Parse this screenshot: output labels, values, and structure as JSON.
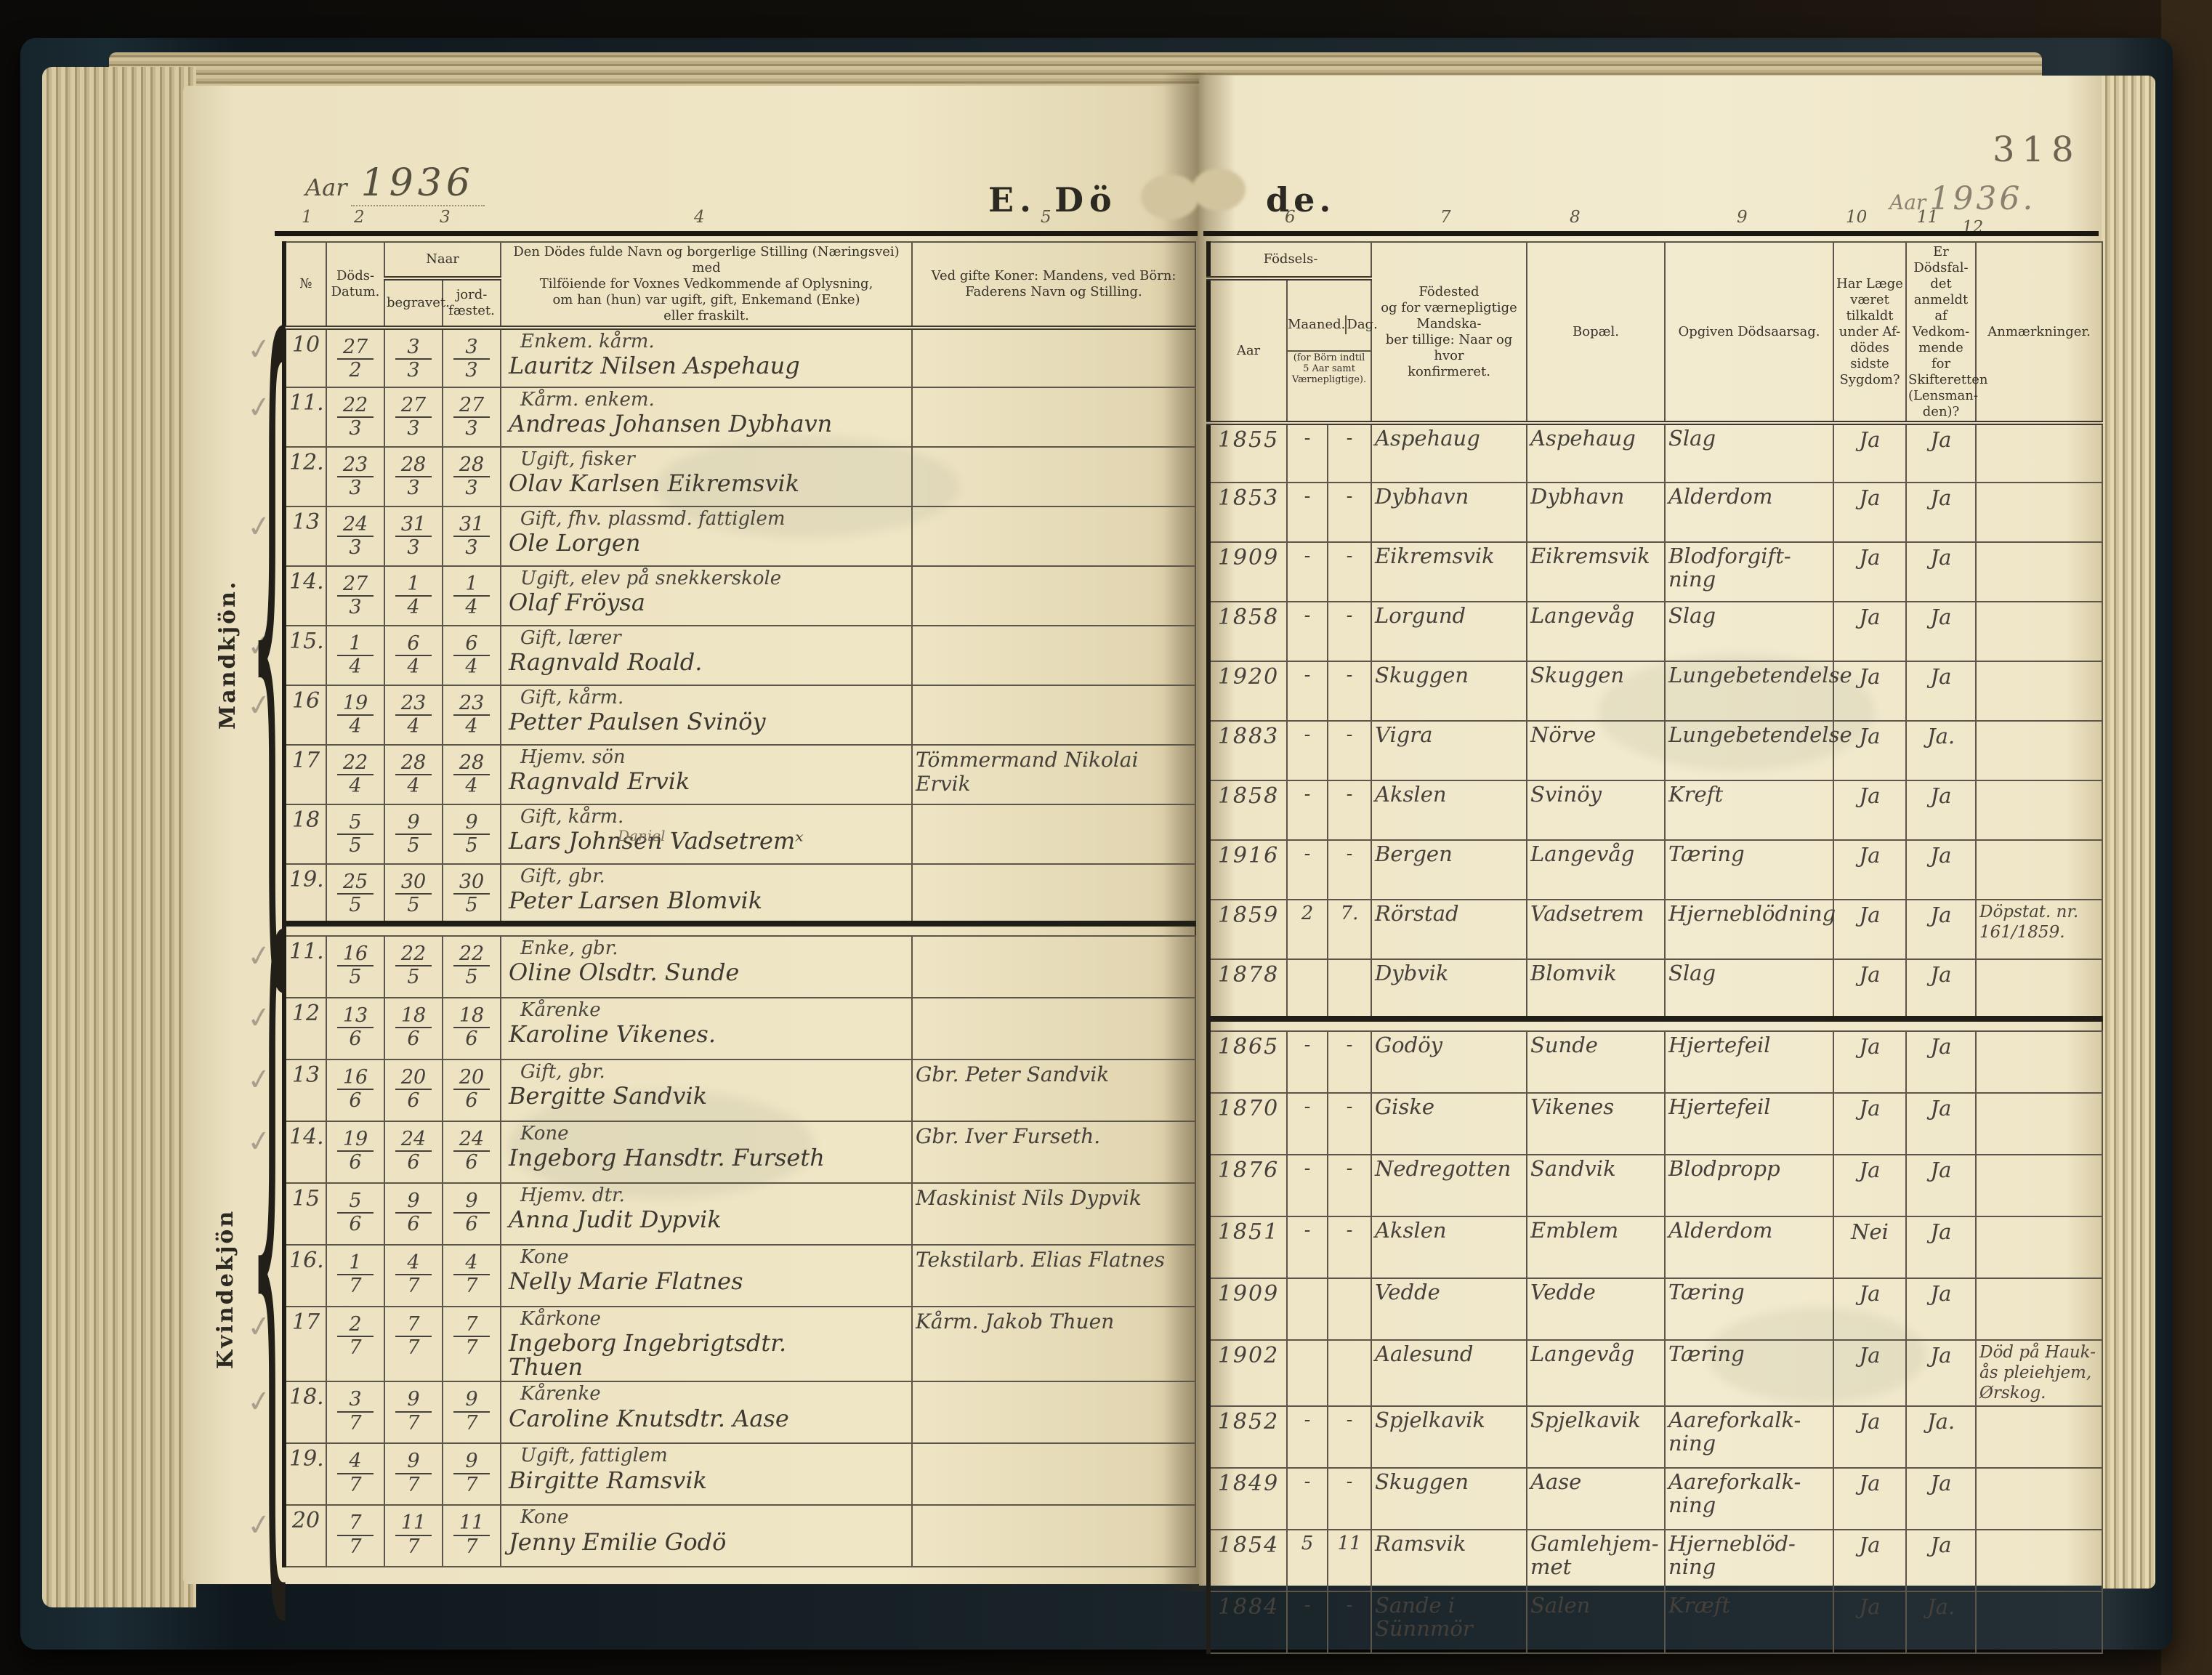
{
  "page": {
    "number": "318",
    "year_label": "Aar",
    "year_left": "1936",
    "year_right": "1936.",
    "title_part1": "E. Dö",
    "title_part2": "de.",
    "check_glyph": "✓",
    "brace_glyph": "{"
  },
  "header": {
    "col_numbers": [
      "1",
      "2",
      "3",
      "4",
      "5",
      "6",
      "7",
      "8",
      "9",
      "10",
      "11",
      "12"
    ],
    "no": "№",
    "dods": "Döds-\nDatum.",
    "naar": "Naar",
    "begravet": "begravet.",
    "jordfaestet": "jord-\nfæstet.",
    "navn": "Den Dödes fulde Navn og borgerlige Stilling (Næringsvei) med\nTilföiende for Voxnes Vedkommende af Oplysning,\nom han (hun) var ugift, gift, Enkemand (Enke)\neller fraskilt.",
    "koner": "Ved gifte Koner: Mandens, ved Börn:\nFaderens Navn og Stilling.",
    "fodsels": "Födsels-",
    "aar": "Aar",
    "maaned": "Maaned.",
    "dag": "Dag.",
    "fodsels_note": "(for Börn indtil\n5 Aar samt\nVærnepligtige).",
    "fodested": "Födested\nog for værnepligtige Mandska-\nber tillige: Naar og hvor\nkonfirmeret.",
    "bopael": "Bopæl.",
    "aarsag": "Opgiven Dödsaarsag.",
    "laege": "Har Læge\nværet\ntilkaldt\nunder Af-\ndödes sidste\nSygdom?",
    "anmeldt": "Er Dödsfal-\ndet anmeldt\naf Vedkom-\nmende for\nSkifteretten\n(Lensman-\nden)?",
    "anm": "Anmærkninger."
  },
  "sections": [
    {
      "label": "Mandkjön.",
      "rows": [
        {
          "no": "10",
          "dod": [
            "27",
            "2"
          ],
          "beg": [
            "3",
            "3"
          ],
          "jor": [
            "3",
            "3"
          ],
          "st": "Enkem. kårm.",
          "nv": "Lauritz Nilsen Aspehaug",
          "far": "",
          "aar": "1855",
          "m": "-",
          "d": "-",
          "sted": "Aspehaug",
          "bo": "Aspehaug",
          "ars": "Slag",
          "lg": "Ja",
          "an": "Ja",
          "anm": "",
          "chk": true
        },
        {
          "no": "11.",
          "dod": [
            "22",
            "3"
          ],
          "beg": [
            "27",
            "3"
          ],
          "jor": [
            "27",
            "3"
          ],
          "st": "Kårm. enkem.",
          "nv": "Andreas Johansen Dybhavn",
          "far": "",
          "aar": "1853",
          "m": "-",
          "d": "-",
          "sted": "Dybhavn",
          "bo": "Dybhavn",
          "ars": "Alderdom",
          "lg": "Ja",
          "an": "Ja",
          "anm": "",
          "chk": true
        },
        {
          "no": "12.",
          "dod": [
            "23",
            "3"
          ],
          "beg": [
            "28",
            "3"
          ],
          "jor": [
            "28",
            "3"
          ],
          "st": "Ugift, fisker",
          "nv": "Olav Karlsen Eikremsvik",
          "far": "",
          "aar": "1909",
          "m": "-",
          "d": "-",
          "sted": "Eikremsvik",
          "bo": "Eikremsvik",
          "ars": "Blodforgift-\nning",
          "lg": "Ja",
          "an": "Ja",
          "anm": "",
          "chk": false
        },
        {
          "no": "13",
          "dod": [
            "24",
            "3"
          ],
          "beg": [
            "31",
            "3"
          ],
          "jor": [
            "31",
            "3"
          ],
          "st": "Gift, fhv. plassmd. fattiglem",
          "nv": "Ole Lorgen",
          "far": "",
          "aar": "1858",
          "m": "-",
          "d": "-",
          "sted": "Lorgund",
          "bo": "Langevåg",
          "ars": "Slag",
          "lg": "Ja",
          "an": "Ja",
          "anm": "",
          "chk": true
        },
        {
          "no": "14.",
          "dod": [
            "27",
            "3"
          ],
          "beg": [
            "1",
            "4"
          ],
          "jor": [
            "1",
            "4"
          ],
          "st": "Ugift, elev på snekkerskole",
          "nv": "Olaf Fröysa",
          "far": "",
          "aar": "1920",
          "m": "-",
          "d": "-",
          "sted": "Skuggen",
          "bo": "Skuggen",
          "ars": "Lungebetendelse",
          "lg": "Ja",
          "an": "Ja",
          "anm": "",
          "chk": false
        },
        {
          "no": "15.",
          "dod": [
            "1",
            "4"
          ],
          "beg": [
            "6",
            "4"
          ],
          "jor": [
            "6",
            "4"
          ],
          "st": "Gift, lærer",
          "nv": "Ragnvald Roald.",
          "far": "",
          "aar": "1883",
          "m": "-",
          "d": "-",
          "sted": "Vigra",
          "bo": "Nörve",
          "ars": "Lungebetendelse",
          "lg": "Ja",
          "an": "Ja.",
          "anm": "",
          "chk": true
        },
        {
          "no": "16",
          "dod": [
            "19",
            "4"
          ],
          "beg": [
            "23",
            "4"
          ],
          "jor": [
            "23",
            "4"
          ],
          "st": "Gift, kårm.",
          "nv": "Petter Paulsen Svinöy",
          "far": "",
          "aar": "1858",
          "m": "-",
          "d": "-",
          "sted": "Akslen",
          "bo": "Svinöy",
          "ars": "Kreft",
          "lg": "Ja",
          "an": "Ja",
          "anm": "",
          "chk": true
        },
        {
          "no": "17",
          "dod": [
            "22",
            "4"
          ],
          "beg": [
            "28",
            "4"
          ],
          "jor": [
            "28",
            "4"
          ],
          "st": "Hjemv. sön",
          "nv": "Ragnvald Ervik",
          "far": "Tömmermand Nikolai\nErvik",
          "aar": "1916",
          "m": "-",
          "d": "-",
          "sted": "Bergen",
          "bo": "Langevåg",
          "ars": "Tæring",
          "lg": "Ja",
          "an": "Ja",
          "anm": "",
          "chk": false
        },
        {
          "no": "18",
          "dod": [
            "5",
            "5"
          ],
          "beg": [
            "9",
            "5"
          ],
          "jor": [
            "9",
            "5"
          ],
          "st": "Gift, kårm.",
          "nv": "Lars Johnsen Vadsetremˣ",
          "ins": "Daniel",
          "far": "",
          "aar": "1859",
          "m": "2",
          "d": "7.",
          "sted": "Rörstad",
          "bo": "Vadsetrem",
          "ars": "Hjerneblödning",
          "lg": "Ja",
          "an": "Ja",
          "anm": "Döpstat. nr. 161/1859.",
          "chk": false
        },
        {
          "no": "19.",
          "dod": [
            "25",
            "5"
          ],
          "beg": [
            "30",
            "5"
          ],
          "jor": [
            "30",
            "5"
          ],
          "st": "Gift, gbr.",
          "nv": "Peter Larsen Blomvik",
          "far": "",
          "aar": "1878",
          "m": "",
          "d": "",
          "sted": "Dybvik",
          "bo": "Blomvik",
          "ars": "Slag",
          "lg": "Ja",
          "an": "Ja",
          "anm": "",
          "chk": false
        }
      ]
    },
    {
      "label": "Kvindekjön",
      "rows": [
        {
          "no": "11.",
          "dod": [
            "16",
            "5"
          ],
          "beg": [
            "22",
            "5"
          ],
          "jor": [
            "22",
            "5"
          ],
          "st": "Enke, gbr.",
          "nv": "Oline Olsdtr. Sunde",
          "far": "",
          "aar": "1865",
          "m": "-",
          "d": "-",
          "sted": "Godöy",
          "bo": "Sunde",
          "ars": "Hjertefeil",
          "lg": "Ja",
          "an": "Ja",
          "anm": "",
          "chk": true
        },
        {
          "no": "12",
          "dod": [
            "13",
            "6"
          ],
          "beg": [
            "18",
            "6"
          ],
          "jor": [
            "18",
            "6"
          ],
          "st": "Kårenke",
          "nv": "Karoline Vikenes.",
          "far": "",
          "aar": "1870",
          "m": "-",
          "d": "-",
          "sted": "Giske",
          "bo": "Vikenes",
          "ars": "Hjertefeil",
          "lg": "Ja",
          "an": "Ja",
          "anm": "",
          "chk": true
        },
        {
          "no": "13",
          "dod": [
            "16",
            "6"
          ],
          "beg": [
            "20",
            "6"
          ],
          "jor": [
            "20",
            "6"
          ],
          "st": "Gift, gbr.",
          "nv": "Bergitte Sandvik",
          "far": "Gbr. Peter Sandvik",
          "aar": "1876",
          "m": "-",
          "d": "-",
          "sted": "Nedregotten",
          "bo": "Sandvik",
          "ars": "Blodpropp",
          "lg": "Ja",
          "an": "Ja",
          "anm": "",
          "chk": true
        },
        {
          "no": "14.",
          "dod": [
            "19",
            "6"
          ],
          "beg": [
            "24",
            "6"
          ],
          "jor": [
            "24",
            "6"
          ],
          "st": "Kone",
          "nv": "Ingeborg Hansdtr. Furseth",
          "far": "Gbr. Iver Furseth.",
          "aar": "1851",
          "m": "-",
          "d": "-",
          "sted": "Akslen",
          "bo": "Emblem",
          "ars": "Alderdom",
          "lg": "Nei",
          "an": "Ja",
          "anm": "",
          "chk": true
        },
        {
          "no": "15",
          "dod": [
            "5",
            "6"
          ],
          "beg": [
            "9",
            "6"
          ],
          "jor": [
            "9",
            "6"
          ],
          "st": "Hjemv. dtr.",
          "nv": "Anna Judit Dypvik",
          "far": "Maskinist Nils Dypvik",
          "aar": "1909",
          "m": "",
          "d": "",
          "sted": "Vedde",
          "bo": "Vedde",
          "ars": "Tæring",
          "lg": "Ja",
          "an": "Ja",
          "anm": "",
          "chk": false
        },
        {
          "no": "16.",
          "dod": [
            "1",
            "7"
          ],
          "beg": [
            "4",
            "7"
          ],
          "jor": [
            "4",
            "7"
          ],
          "st": "Kone",
          "nv": "Nelly Marie Flatnes",
          "far": "Tekstilarb. Elias Flatnes",
          "aar": "1902",
          "m": "",
          "d": "",
          "sted": "Aalesund",
          "bo": "Langevåg",
          "ars": "Tæring",
          "lg": "Ja",
          "an": "Ja",
          "anm": "Död på Hauk-\nås pleiehjem,\nØrskog.",
          "chk": false
        },
        {
          "no": "17",
          "dod": [
            "2",
            "7"
          ],
          "beg": [
            "7",
            "7"
          ],
          "jor": [
            "7",
            "7"
          ],
          "st": "Kårkone",
          "nv": "Ingeborg Ingebrigtsdtr.\n        Thuen",
          "far": "Kårm. Jakob Thuen",
          "aar": "1852",
          "m": "-",
          "d": "-",
          "sted": "Spjelkavik",
          "bo": "Spjelkavik",
          "ars": "Aareforkalk-\nning",
          "lg": "Ja",
          "an": "Ja.",
          "anm": "",
          "chk": true
        },
        {
          "no": "18.",
          "dod": [
            "3",
            "7"
          ],
          "beg": [
            "9",
            "7"
          ],
          "jor": [
            "9",
            "7"
          ],
          "st": "Kårenke",
          "nv": "Caroline Knutsdtr. Aase",
          "far": "",
          "aar": "1849",
          "m": "-",
          "d": "-",
          "sted": "Skuggen",
          "bo": "Aase",
          "ars": "Aareforkalk-\nning",
          "lg": "Ja",
          "an": "Ja",
          "anm": "",
          "chk": true
        },
        {
          "no": "19.",
          "dod": [
            "4",
            "7"
          ],
          "beg": [
            "9",
            "7"
          ],
          "jor": [
            "9",
            "7"
          ],
          "st": "Ugift, fattiglem",
          "nv": "Birgitte Ramsvik",
          "far": "",
          "aar": "1854",
          "m": "5",
          "d": "11",
          "sted": "Ramsvik",
          "bo": "Gamlehjem-\nmet",
          "ars": "Hjerneblöd-\nning",
          "lg": "Ja",
          "an": "Ja",
          "anm": "",
          "chk": false
        },
        {
          "no": "20",
          "dod": [
            "7",
            "7"
          ],
          "beg": [
            "11",
            "7"
          ],
          "jor": [
            "11",
            "7"
          ],
          "st": "Kone",
          "nv": "Jenny Emilie Godö",
          "far": "",
          "aar": "1884",
          "m": "-",
          "d": "-",
          "sted": "Sande i\nSünnmör",
          "bo": "Salen",
          "ars": "Kræft",
          "lg": "Ja",
          "an": "Ja.",
          "anm": "",
          "chk": true
        }
      ]
    }
  ]
}
